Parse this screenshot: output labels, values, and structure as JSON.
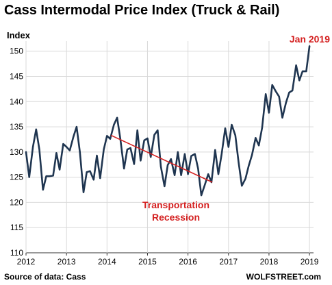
{
  "chart_data": {
    "type": "line",
    "title": "Cass Intermodal Price Index (Truck & Rail)",
    "ylabel": "Index",
    "xlabel": "",
    "ylim": [
      110,
      152
    ],
    "yticks": [
      110,
      115,
      120,
      125,
      130,
      135,
      140,
      145,
      150
    ],
    "xticks": [
      "2012",
      "2013",
      "2014",
      "2015",
      "2016",
      "2017",
      "2018",
      "2019"
    ],
    "xlim": [
      2012,
      2019.1
    ],
    "grid": true,
    "line_color": "#1f3550",
    "series": [
      {
        "x": [
          2012.0,
          2012.08,
          2012.17,
          2012.25,
          2012.33,
          2012.42,
          2012.5,
          2012.58,
          2012.67,
          2012.75,
          2012.83,
          2012.92,
          2013.0,
          2013.08,
          2013.17,
          2013.25,
          2013.33,
          2013.42,
          2013.5,
          2013.58,
          2013.67,
          2013.75,
          2013.83,
          2013.92,
          2014.0,
          2014.08,
          2014.17,
          2014.25,
          2014.33,
          2014.42,
          2014.5,
          2014.58,
          2014.67,
          2014.75,
          2014.83,
          2014.92,
          2015.0,
          2015.08,
          2015.17,
          2015.25,
          2015.33,
          2015.42,
          2015.5,
          2015.58,
          2015.67,
          2015.75,
          2015.83,
          2015.92,
          2016.0,
          2016.08,
          2016.17,
          2016.25,
          2016.33,
          2016.42,
          2016.5,
          2016.58,
          2016.67,
          2016.75,
          2016.83,
          2016.92,
          2017.0,
          2017.08,
          2017.17,
          2017.25,
          2017.33,
          2017.42,
          2017.5,
          2017.58,
          2017.67,
          2017.75,
          2017.83,
          2017.92,
          2018.0,
          2018.08,
          2018.17,
          2018.25,
          2018.33,
          2018.42,
          2018.5,
          2018.58,
          2018.67,
          2018.75,
          2018.83,
          2018.92,
          2019.0
        ],
        "values": [
          130.0,
          125.0,
          131.0,
          134.5,
          130.5,
          122.5,
          125.2,
          125.2,
          125.3,
          129.8,
          126.5,
          131.6,
          131.0,
          130.3,
          133.0,
          135.0,
          130.0,
          122.0,
          126.0,
          126.2,
          124.5,
          129.3,
          124.8,
          130.5,
          133.2,
          132.6,
          135.4,
          136.8,
          132.6,
          126.7,
          130.5,
          130.8,
          127.6,
          134.3,
          128.3,
          132.3,
          132.7,
          129.0,
          133.4,
          134.3,
          127.1,
          123.2,
          127.4,
          128.6,
          125.4,
          130.0,
          125.4,
          129.6,
          125.6,
          129.2,
          129.6,
          126.7,
          121.4,
          123.6,
          125.6,
          124.0,
          130.4,
          125.6,
          129.5,
          134.7,
          131.0,
          135.4,
          133.3,
          127.9,
          123.3,
          124.7,
          127.3,
          129.4,
          132.8,
          131.3,
          134.8,
          141.5,
          137.8,
          143.3,
          142.0,
          141.0,
          136.8,
          139.8,
          141.8,
          142.2,
          147.2,
          144.2,
          146.0,
          146.0,
          151.0
        ]
      }
    ],
    "annotations": [
      {
        "text": "Jan 2019"
      },
      {
        "text": "Transportation"
      },
      {
        "text": "Recession"
      }
    ],
    "trend_line": {
      "x": [
        2014.1,
        2016.6
      ],
      "y": [
        133.3,
        124.0
      ],
      "color": "#d42020"
    }
  },
  "footer": {
    "source": "Source of data: Cass",
    "brand": "WOLFSTREET.com"
  }
}
